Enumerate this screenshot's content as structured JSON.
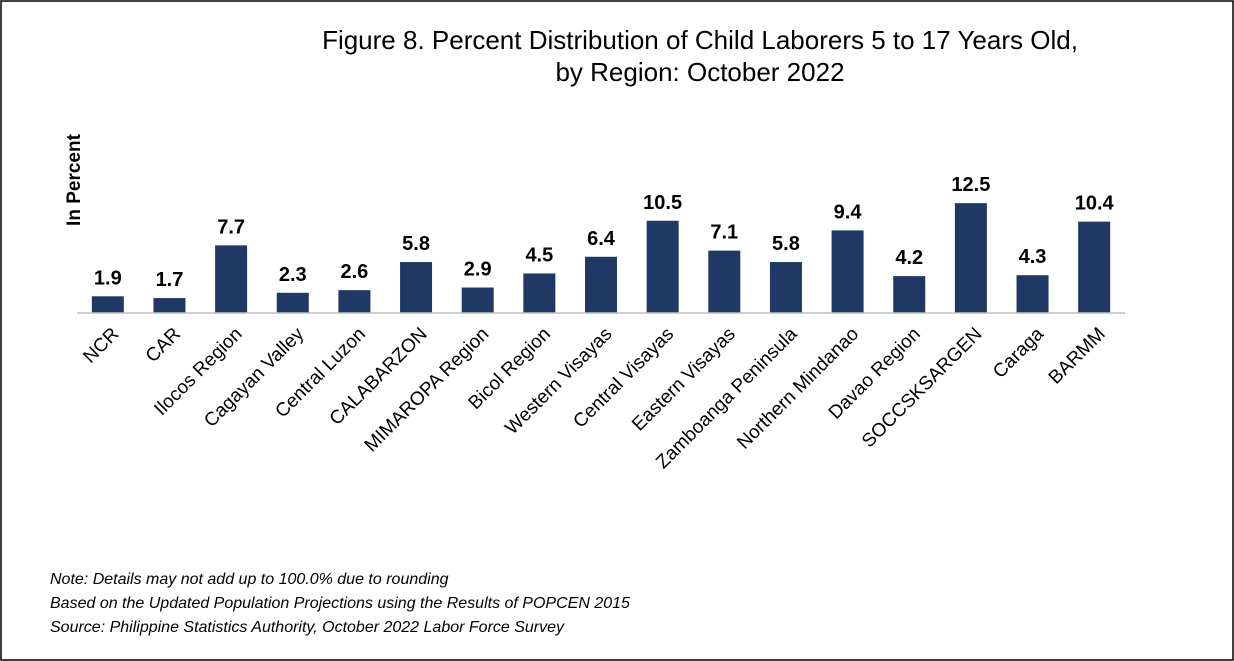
{
  "chart_data": {
    "type": "bar",
    "title": [
      "Figure 8. Percent Distribution of Child Laborers 5 to 17 Years Old,",
      "by Region: October 2022"
    ],
    "y_label": "In Percent",
    "categories": [
      "NCR",
      "CAR",
      "Ilocos Region",
      "Cagayan Valley",
      "Central Luzon",
      "CALABARZON",
      "MIMAROPA Region",
      "Bicol Region",
      "Western Visayas",
      "Central Visayas",
      "Eastern Visayas",
      "Zamboanga Peninsula",
      "Northern Mindanao",
      "Davao Region",
      "SOCCSKSARGEN",
      "Caraga",
      "BARMM"
    ],
    "values": [
      1.9,
      1.7,
      7.7,
      2.3,
      2.6,
      5.8,
      2.9,
      4.5,
      6.4,
      10.5,
      7.1,
      5.8,
      9.4,
      4.2,
      12.5,
      4.3,
      10.4
    ],
    "color": "#203864",
    "ylim": [
      0,
      14
    ],
    "notes": [
      "Note: Details may not add up to 100.0% due to rounding",
      "Based on the Updated Population Projections using the Results of POPCEN 2015",
      "Source: Philippine Statistics Authority, October 2022 Labor Force Survey"
    ]
  }
}
